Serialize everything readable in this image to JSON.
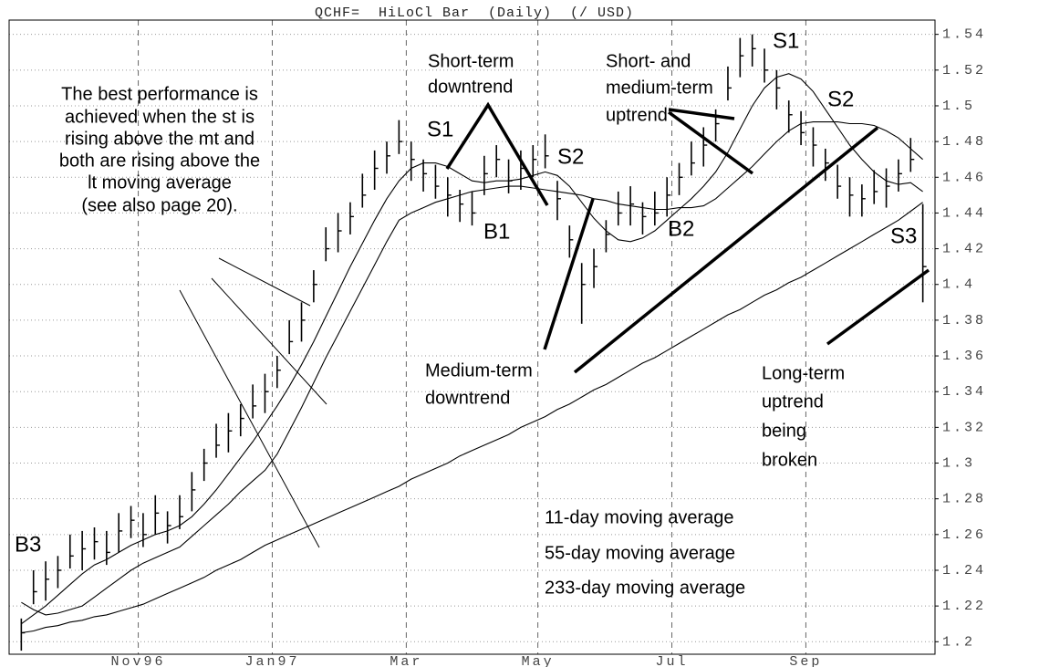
{
  "chart_data": {
    "type": "hilocl",
    "title": "QCHF=  HiLoCl Bar  (Daily)  (/ USD)",
    "highs": [
      1.213,
      1.24,
      1.245,
      1.248,
      1.26,
      1.262,
      1.264,
      1.262,
      1.272,
      1.276,
      1.272,
      1.282,
      1.273,
      1.282,
      1.295,
      1.308,
      1.322,
      1.328,
      1.333,
      1.344,
      1.35,
      1.36,
      1.38,
      1.39,
      1.408,
      1.432,
      1.44,
      1.446,
      1.462,
      1.475,
      1.48,
      1.492,
      1.48,
      1.47,
      1.467,
      1.46,
      1.453,
      1.452,
      1.472,
      1.478,
      1.47,
      1.475,
      1.478,
      1.484,
      1.458,
      1.433,
      1.412,
      1.42,
      1.436,
      1.452,
      1.455,
      1.446,
      1.452,
      1.46,
      1.468,
      1.48,
      1.488,
      1.498,
      1.522,
      1.538,
      1.54,
      1.532,
      1.52,
      1.503,
      1.497,
      1.488,
      1.476,
      1.467,
      1.46,
      1.456,
      1.464,
      1.465,
      1.47,
      1.482,
      1.445
    ],
    "lows": [
      1.195,
      1.221,
      1.223,
      1.23,
      1.241,
      1.24,
      1.246,
      1.243,
      1.25,
      1.258,
      1.253,
      1.26,
      1.255,
      1.263,
      1.273,
      1.29,
      1.303,
      1.306,
      1.315,
      1.325,
      1.328,
      1.342,
      1.361,
      1.368,
      1.39,
      1.413,
      1.418,
      1.428,
      1.443,
      1.453,
      1.462,
      1.473,
      1.458,
      1.452,
      1.448,
      1.438,
      1.435,
      1.433,
      1.45,
      1.46,
      1.451,
      1.453,
      1.46,
      1.465,
      1.436,
      1.415,
      1.378,
      1.398,
      1.418,
      1.433,
      1.433,
      1.428,
      1.433,
      1.438,
      1.45,
      1.461,
      1.466,
      1.48,
      1.503,
      1.516,
      1.522,
      1.513,
      1.498,
      1.485,
      1.478,
      1.466,
      1.458,
      1.448,
      1.438,
      1.438,
      1.445,
      1.443,
      1.452,
      1.463,
      1.39
    ],
    "closes": [
      1.205,
      1.228,
      1.235,
      1.24,
      1.248,
      1.252,
      1.256,
      1.25,
      1.262,
      1.268,
      1.26,
      1.272,
      1.265,
      1.27,
      1.285,
      1.3,
      1.31,
      1.318,
      1.325,
      1.332,
      1.34,
      1.352,
      1.368,
      1.38,
      1.4,
      1.42,
      1.43,
      1.438,
      1.45,
      1.465,
      1.472,
      1.48,
      1.47,
      1.462,
      1.455,
      1.45,
      1.445,
      1.44,
      1.462,
      1.47,
      1.458,
      1.465,
      1.47,
      1.472,
      1.448,
      1.425,
      1.4,
      1.41,
      1.428,
      1.44,
      1.445,
      1.438,
      1.44,
      1.45,
      1.46,
      1.468,
      1.478,
      1.49,
      1.51,
      1.528,
      1.532,
      1.52,
      1.51,
      1.495,
      1.485,
      1.478,
      1.468,
      1.455,
      1.45,
      1.448,
      1.452,
      1.455,
      1.462,
      1.47,
      1.41
    ],
    "color": "#000000",
    "series": [
      {
        "name": "11-day moving average",
        "color": "#000000",
        "values": [
          1.21,
          1.215,
          1.22,
          1.226,
          1.232,
          1.238,
          1.243,
          1.246,
          1.25,
          1.254,
          1.257,
          1.26,
          1.262,
          1.265,
          1.27,
          1.277,
          1.285,
          1.294,
          1.303,
          1.312,
          1.322,
          1.332,
          1.343,
          1.355,
          1.368,
          1.382,
          1.396,
          1.41,
          1.423,
          1.436,
          1.448,
          1.458,
          1.465,
          1.468,
          1.468,
          1.466,
          1.462,
          1.458,
          1.457,
          1.458,
          1.458,
          1.459,
          1.461,
          1.463,
          1.461,
          1.455,
          1.446,
          1.437,
          1.43,
          1.425,
          1.424,
          1.426,
          1.43,
          1.436,
          1.442,
          1.448,
          1.455,
          1.463,
          1.474,
          1.487,
          1.5,
          1.51,
          1.516,
          1.518,
          1.515,
          1.508,
          1.498,
          1.488,
          1.478,
          1.47,
          1.463,
          1.458,
          1.456,
          1.457,
          1.452
        ]
      },
      {
        "name": "55-day moving average",
        "color": "#000000",
        "values": [
          1.222,
          1.218,
          1.215,
          1.216,
          1.218,
          1.22,
          1.225,
          1.23,
          1.235,
          1.24,
          1.244,
          1.247,
          1.25,
          1.253,
          1.259,
          1.265,
          1.271,
          1.277,
          1.284,
          1.29,
          1.296,
          1.305,
          1.318,
          1.331,
          1.345,
          1.359,
          1.372,
          1.385,
          1.398,
          1.411,
          1.424,
          1.436,
          1.44,
          1.443,
          1.446,
          1.448,
          1.45,
          1.452,
          1.453,
          1.454,
          1.455,
          1.455,
          1.454,
          1.453,
          1.452,
          1.451,
          1.45,
          1.448,
          1.447,
          1.445,
          1.444,
          1.443,
          1.442,
          1.442,
          1.443,
          1.443,
          1.444,
          1.448,
          1.454,
          1.46,
          1.466,
          1.473,
          1.48,
          1.486,
          1.49,
          1.491,
          1.491,
          1.491,
          1.49,
          1.49,
          1.489,
          1.486,
          1.482,
          1.476,
          1.47
        ]
      },
      {
        "name": "233-day moving average",
        "color": "#000000",
        "values": [
          1.205,
          1.206,
          1.208,
          1.209,
          1.211,
          1.212,
          1.214,
          1.215,
          1.217,
          1.219,
          1.221,
          1.224,
          1.227,
          1.23,
          1.233,
          1.236,
          1.24,
          1.243,
          1.246,
          1.25,
          1.254,
          1.257,
          1.26,
          1.263,
          1.266,
          1.269,
          1.272,
          1.275,
          1.278,
          1.281,
          1.284,
          1.287,
          1.291,
          1.294,
          1.297,
          1.3,
          1.304,
          1.307,
          1.31,
          1.313,
          1.316,
          1.32,
          1.323,
          1.326,
          1.33,
          1.333,
          1.337,
          1.341,
          1.344,
          1.348,
          1.352,
          1.356,
          1.359,
          1.363,
          1.367,
          1.371,
          1.375,
          1.379,
          1.383,
          1.386,
          1.39,
          1.394,
          1.397,
          1.401,
          1.404,
          1.408,
          1.412,
          1.416,
          1.42,
          1.424,
          1.428,
          1.432,
          1.436,
          1.441,
          1.446
        ]
      }
    ],
    "xlim": [
      -1,
      75
    ],
    "xticks": [
      {
        "value": 9.6,
        "label": "Nov96"
      },
      {
        "value": 20.6,
        "label": "Jan97"
      },
      {
        "value": 31.6,
        "label": "Mar"
      },
      {
        "value": 42.4,
        "label": "May"
      },
      {
        "value": 53.4,
        "label": "Jul"
      },
      {
        "value": 64.4,
        "label": "Sep"
      }
    ],
    "ylim": [
      1.193,
      1.548
    ],
    "yticks": [
      1.2,
      1.22,
      1.24,
      1.26,
      1.28,
      1.3,
      1.32,
      1.34,
      1.36,
      1.38,
      1.4,
      1.42,
      1.44,
      1.46,
      1.48,
      1.5,
      1.52,
      1.54
    ],
    "grid": true,
    "annotations": {
      "note": [
        "The best performance is",
        "achieved when the st is",
        "rising above the mt and",
        "both are rising above the",
        "lt moving average",
        "(see also page 20)."
      ],
      "short_term": [
        "Short-term",
        "downtrend"
      ],
      "short_medium": [
        "Short- and",
        "medium-term",
        "uptrend"
      ],
      "medium_term": [
        "Medium-term",
        "downtrend"
      ],
      "long_term": [
        "Long-term",
        "uptrend",
        "being",
        "broken"
      ],
      "points": [
        "S1",
        "B1",
        "S2",
        "B2",
        "S1",
        "S2",
        "S3",
        "B3"
      ]
    }
  }
}
